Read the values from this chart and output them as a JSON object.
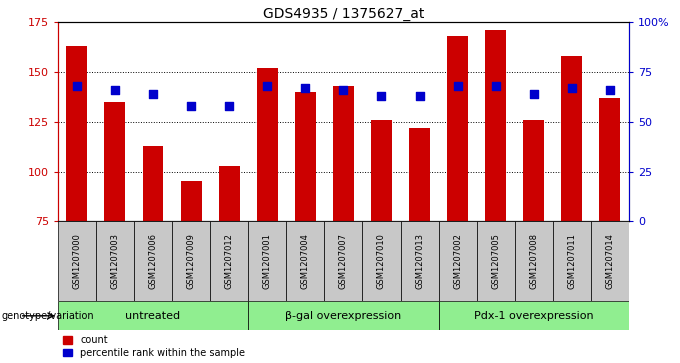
{
  "title": "GDS4935 / 1375627_at",
  "samples": [
    "GSM1207000",
    "GSM1207003",
    "GSM1207006",
    "GSM1207009",
    "GSM1207012",
    "GSM1207001",
    "GSM1207004",
    "GSM1207007",
    "GSM1207010",
    "GSM1207013",
    "GSM1207002",
    "GSM1207005",
    "GSM1207008",
    "GSM1207011",
    "GSM1207014"
  ],
  "counts": [
    163,
    135,
    113,
    95,
    103,
    152,
    140,
    143,
    126,
    122,
    168,
    171,
    126,
    158,
    137
  ],
  "percentiles": [
    68,
    66,
    64,
    58,
    58,
    68,
    67,
    66,
    63,
    63,
    68,
    68,
    64,
    67,
    66
  ],
  "groups": [
    {
      "label": "untreated",
      "start": 0,
      "end": 5
    },
    {
      "label": "β-gal overexpression",
      "start": 5,
      "end": 10
    },
    {
      "label": "Pdx-1 overexpression",
      "start": 10,
      "end": 15
    }
  ],
  "ylim_left": [
    75,
    175
  ],
  "ylim_right": [
    0,
    100
  ],
  "yticks_left": [
    75,
    100,
    125,
    150,
    175
  ],
  "yticks_right": [
    0,
    25,
    50,
    75,
    100
  ],
  "ytick_labels_right": [
    "0",
    "25",
    "50",
    "75",
    "100%"
  ],
  "bar_color": "#cc0000",
  "dot_color": "#0000cc",
  "group_bg_color": "#90ee90",
  "sample_bg_color": "#c8c8c8",
  "bar_width": 0.55,
  "dot_size": 28,
  "title_fontsize": 10,
  "tick_fontsize": 8,
  "sample_fontsize": 6,
  "group_fontsize": 8,
  "legend_fontsize": 7
}
